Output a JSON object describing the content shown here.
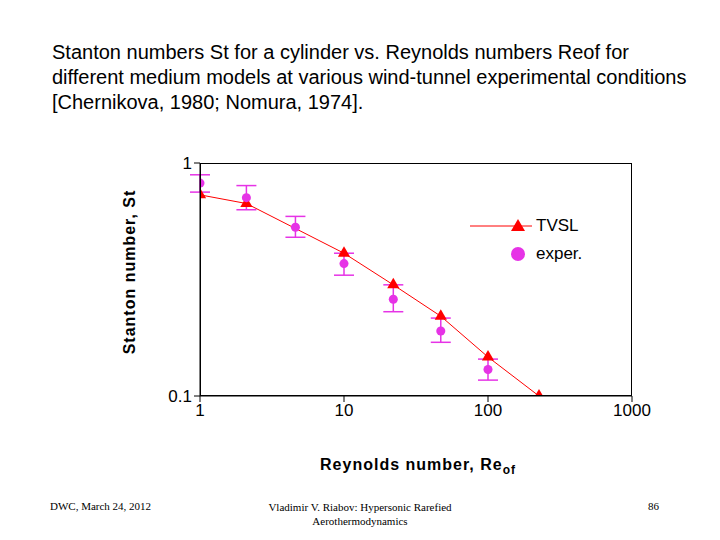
{
  "chart_data": {
    "type": "scatter",
    "title": "Stanton numbers St for a cylinder vs. Reynolds numbers Reof for different medium models at various wind-tunnel experimental conditions [Chernikova, 1980; Nomura, 1974].",
    "xlabel": "Reynolds number, Re",
    "xlabel_subscript": "of",
    "ylabel": "Stanton number, St",
    "log": true,
    "xlim": [
      1,
      1000
    ],
    "xticks": [
      1,
      10,
      100,
      1000
    ],
    "ylim": [
      0.1,
      1
    ],
    "yticks": [
      {
        "value": 0.1,
        "label": "0.1"
      },
      1
    ],
    "grid": false,
    "legend": "upper right",
    "series": [
      {
        "name": "TVSL",
        "color": "#ff0000",
        "marker": "triangle",
        "line_style": "solid",
        "x": [
          1.0,
          2.1,
          10,
          22,
          47,
          100,
          226
        ],
        "values": [
          0.73,
          0.67,
          0.41,
          0.3,
          0.22,
          0.147,
          0.1
        ]
      },
      {
        "name": "exper.",
        "color": "#e633e6",
        "marker": "circle",
        "line_style": "none",
        "x": [
          1.0,
          2.1,
          4.6,
          10,
          22,
          47,
          100
        ],
        "values": [
          0.82,
          0.71,
          0.53,
          0.37,
          0.26,
          0.19,
          0.13
        ],
        "error": [
          [
            0.07,
            0.07
          ],
          [
            0.08,
            0.09
          ],
          [
            0.05,
            0.06
          ],
          [
            0.04,
            0.04
          ],
          [
            0.03,
            0.04
          ],
          [
            0.02,
            0.026
          ],
          [
            0.013,
            0.014
          ]
        ]
      }
    ],
    "footer": {
      "left": "DWC, March 24, 2012",
      "center": "Vladimir V. Riabov: Hypersonic Rarefied Aerothermodynamics",
      "right": "86"
    }
  }
}
